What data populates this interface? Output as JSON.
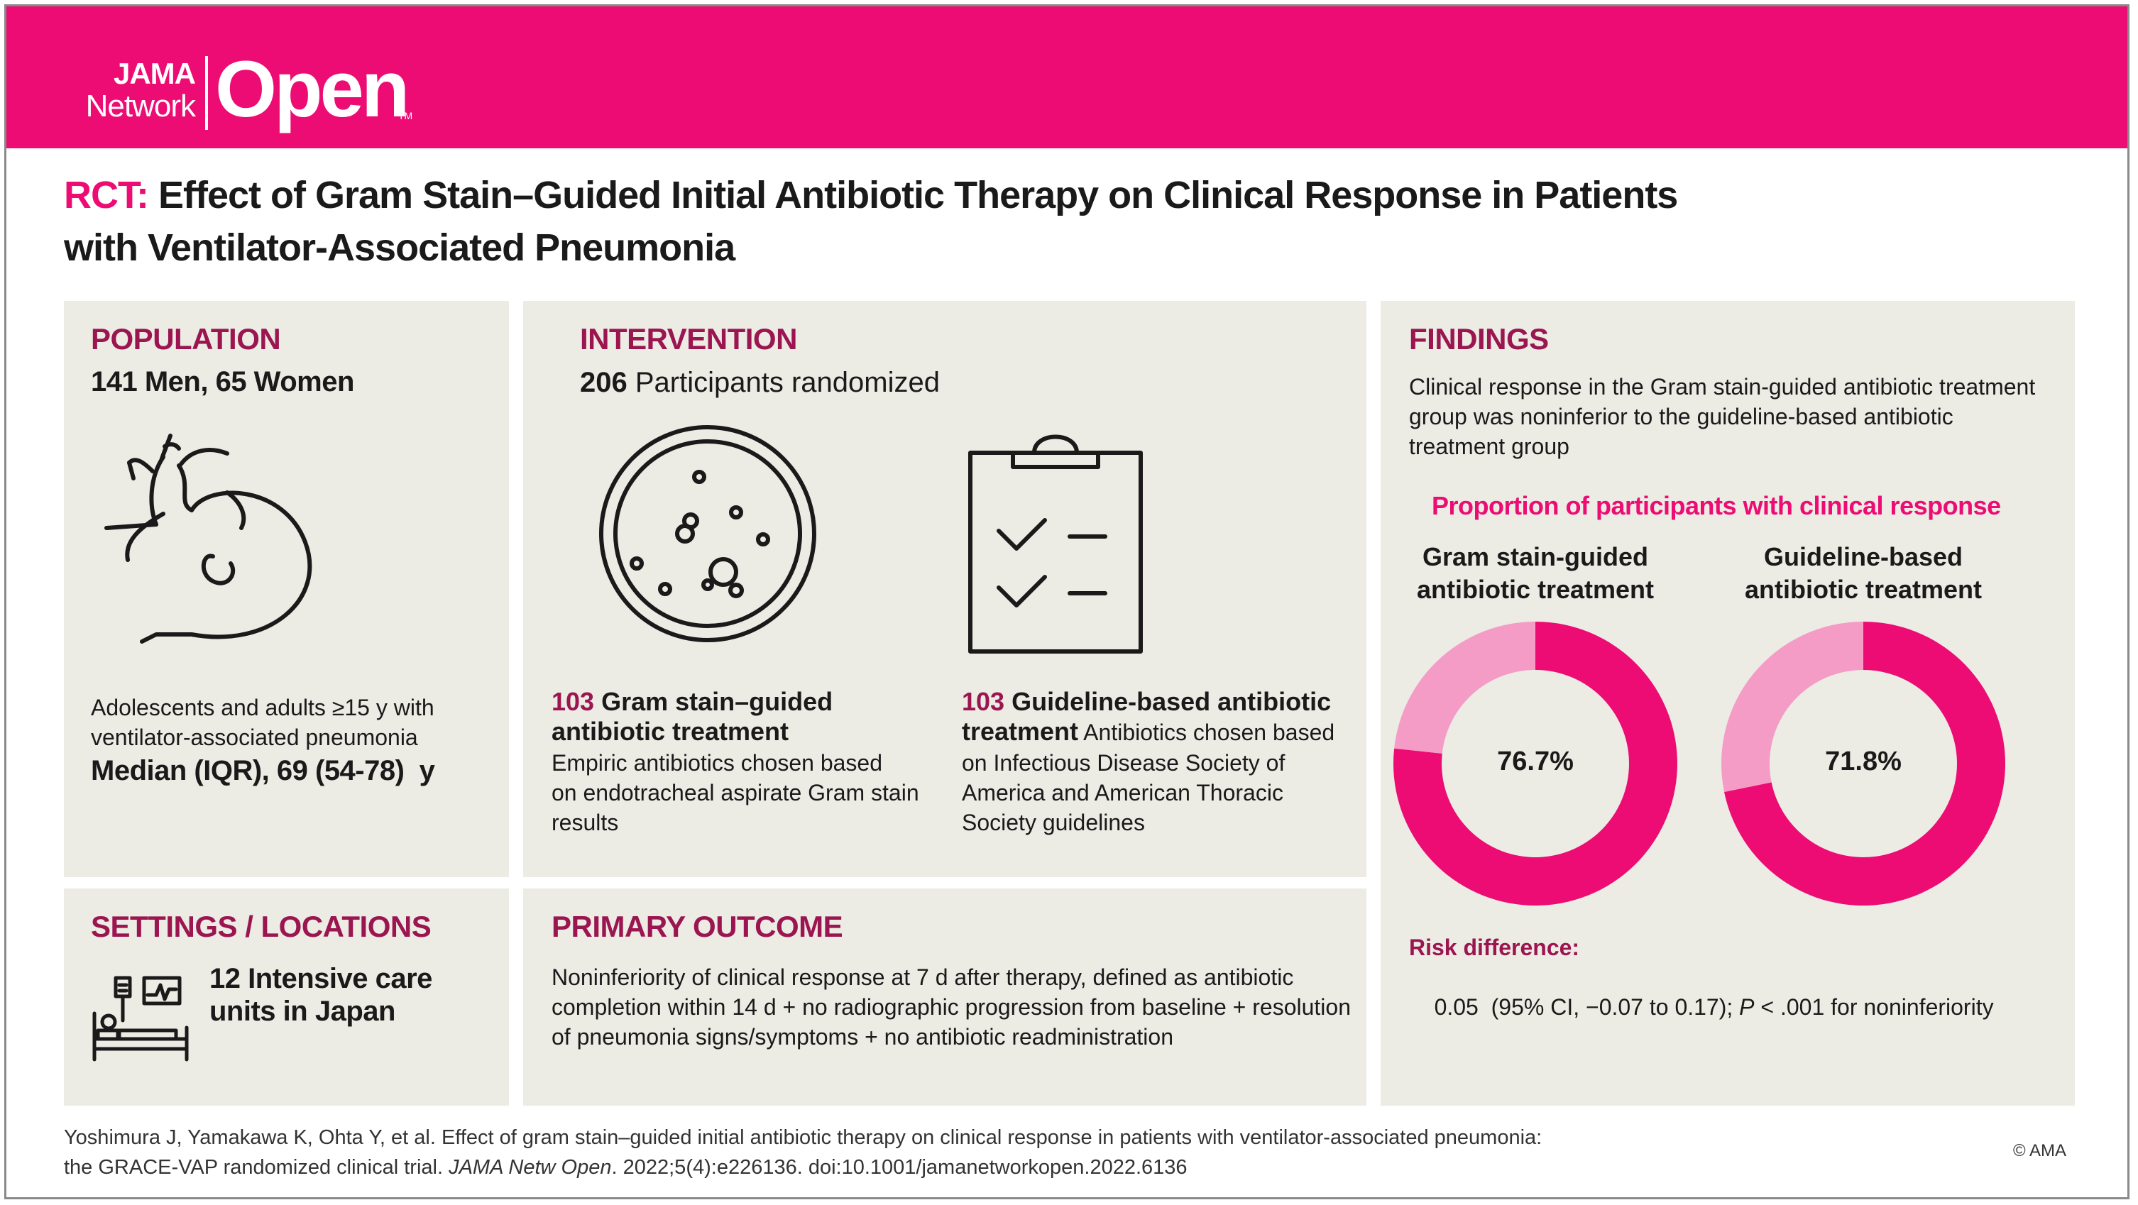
{
  "header": {
    "logo_jama": "JAMA",
    "logo_network": "Network",
    "logo_open": "Open",
    "logo_tm": "TM",
    "brand_color": "#ec0c73"
  },
  "title": {
    "prefix": "RCT:",
    "line1": "Effect of Gram Stain–Guided Initial Antibiotic Therapy on Clinical Response in Patients",
    "line2": "with Ventilator-Associated Pneumonia"
  },
  "population": {
    "heading": "POPULATION",
    "summary": "141 Men, 65 Women",
    "icon": "intubated-patient-icon",
    "desc_line1": "Adolescents and adults ≥15 y with",
    "desc_line2": "ventilator-associated pneumonia",
    "median": "Median (IQR), 69 (54-78)  y"
  },
  "intervention": {
    "heading": "INTERVENTION",
    "randomized_count": "206",
    "randomized_label": " Participants randomized",
    "arm1": {
      "icon": "petri-dish-icon",
      "count": "103",
      "title_line1": " Gram stain–guided",
      "title_line2": "antibiotic treatment",
      "desc_line1": "Empiric antibiotics chosen based",
      "desc_line2": "on endotracheal aspirate Gram stain",
      "desc_line3": "results"
    },
    "arm2": {
      "icon": "clipboard-checklist-icon",
      "count": "103",
      "title_line1": " Guideline-based antibiotic",
      "title_line2": "treatment",
      "desc_line2_tail": " Antibiotics chosen based",
      "desc_line3": "on Infectious Disease Society of",
      "desc_line4": "America and American Thoracic",
      "desc_line5": "Society guidelines"
    }
  },
  "settings": {
    "heading": "SETTINGS / LOCATIONS",
    "icon": "icu-bed-icon",
    "line1": "12 Intensive care",
    "line2": "units in Japan"
  },
  "primary_outcome": {
    "heading": "PRIMARY OUTCOME",
    "line1": "Noninferiority of clinical response at 7 d after therapy, defined as antibiotic",
    "line2": "completion within 14 d + no radiographic progression from baseline + resolution",
    "line3": "of pneumonia signs/symptoms + no antibiotic readministration"
  },
  "findings": {
    "heading": "FINDINGS",
    "line1": "Clinical response in the Gram stain-guided antibiotic treatment",
    "line2": "group was noninferior to the guideline-based antibiotic",
    "line3": "treatment group",
    "risk_label": "Risk difference:",
    "risk_value": "0.05  (95% CI, −0.07 to 0.17); ",
    "risk_p_italic": "P",
    "risk_p_rest": " < .001 for noninferiority"
  },
  "chart_data": {
    "type": "pie",
    "title": "Proportion of participants with clinical response",
    "series": [
      {
        "name": "Gram stain-guided antibiotic treatment",
        "line1": "Gram stain-guided",
        "line2": "antibiotic treatment",
        "value": 76.7,
        "label": "76.7%"
      },
      {
        "name": "Guideline-based antibiotic treatment",
        "line1": "Guideline-based",
        "line2": "antibiotic treatment",
        "value": 71.8,
        "label": "71.8%"
      }
    ],
    "colors": {
      "response": "#ec0c73",
      "no_response": "#f49cc6"
    }
  },
  "citation": {
    "line1": "Yoshimura J, Yamakawa K, Ohta Y, et al. Effect of gram stain–guided initial antibiotic therapy on clinical response in patients with ventilator-associated pneumonia:",
    "line2_a": "the GRACE-VAP randomized clinical trial. ",
    "line2_journal": "JAMA Netw Open",
    "line2_b": ". 2022;5(4):e226136. doi:10.1001/jamanetworkopen.2022.6136",
    "copyright": "© AMA"
  }
}
